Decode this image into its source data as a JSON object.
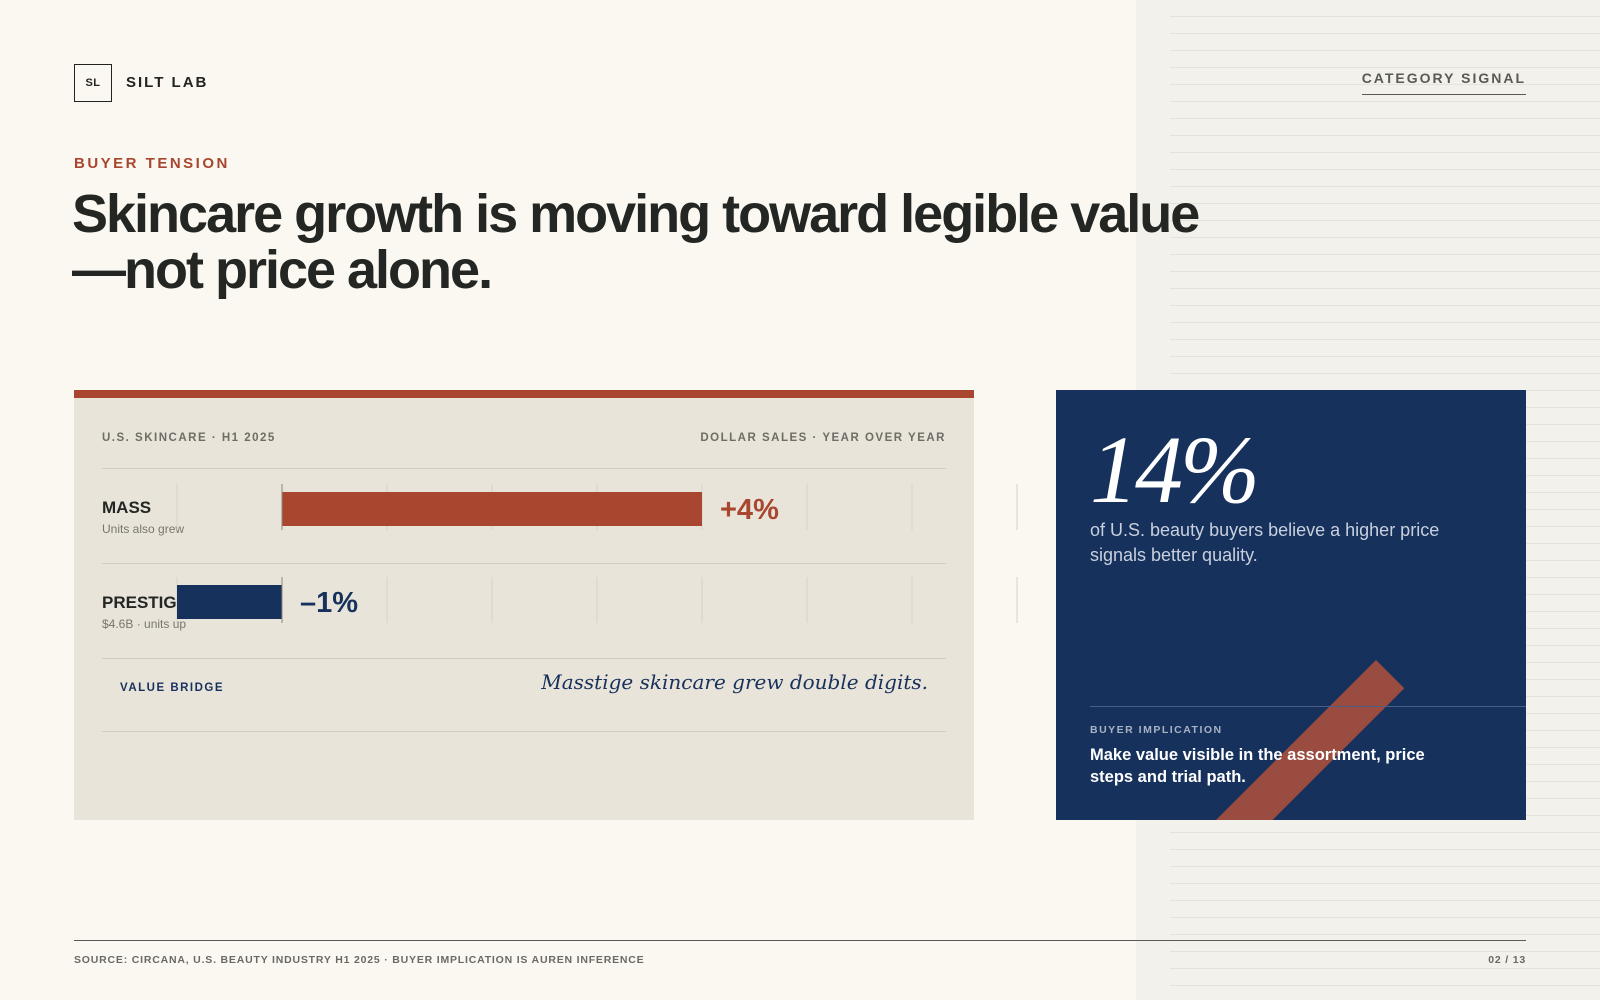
{
  "brand": {
    "mark": "SL",
    "name": "SILT LAB"
  },
  "section_tag": "CATEGORY SIGNAL",
  "kicker": "BUYER TENSION",
  "headline": {
    "line1": "Skincare growth is moving toward legible value",
    "line2": "—not price alone."
  },
  "chart_data": {
    "type": "bar",
    "orientation": "horizontal",
    "title": "U.S. SKINCARE · H1 2025",
    "subtitle": "DOLLAR SALES · YEAR OVER YEAR",
    "categories": [
      "MASS",
      "PRESTIGE"
    ],
    "category_notes": [
      "Units also grew",
      "$4.6B · units up"
    ],
    "values": [
      4,
      -1
    ],
    "value_labels": [
      "+4%",
      "–1%"
    ],
    "unit": "%",
    "colors": [
      "#a8462f",
      "#16315c"
    ],
    "xlim": [
      -1,
      7.5
    ],
    "grid": true
  },
  "bridge": {
    "label": "VALUE BRIDGE",
    "quote": "Masstige skincare grew double digits."
  },
  "stat": {
    "number": "14%",
    "description": "of U.S. beauty buyers believe a higher price signals better quality.",
    "implication_label": "BUYER IMPLICATION",
    "implication": "Make value visible in the assortment, price steps and trial path."
  },
  "footer": {
    "source": "SOURCE: CIRCANA, U.S. BEAUTY INDUSTRY H1 2025 · BUYER IMPLICATION IS AUREN INFERENCE",
    "page": "02 / 13"
  },
  "colors": {
    "accent": "#a8462f",
    "navy": "#16315c",
    "background": "#faf8f1",
    "card": "#e9e4d9"
  }
}
